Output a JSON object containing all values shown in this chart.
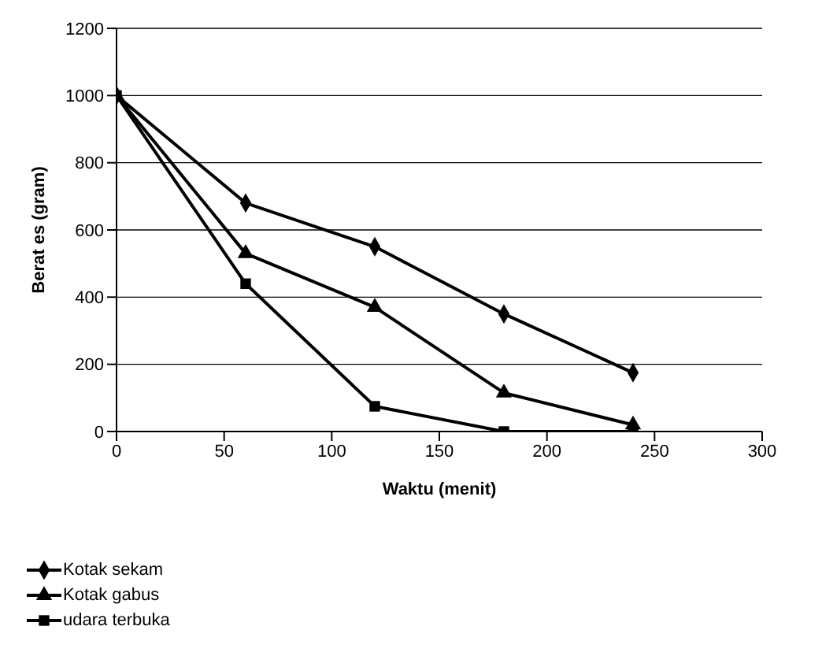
{
  "chart_data": {
    "type": "line",
    "xlabel": "Waktu (menit)",
    "ylabel": "Berat es (gram)",
    "x": [
      0,
      60,
      120,
      180,
      240
    ],
    "series": [
      {
        "name": "Kotak sekam",
        "color": "#000000",
        "marker": "diamond",
        "values": [
          1000,
          680,
          550,
          350,
          175
        ]
      },
      {
        "name": "Kotak gabus",
        "color": "#000000",
        "marker": "triangle",
        "values": [
          1000,
          530,
          370,
          115,
          20
        ]
      },
      {
        "name": "udara terbuka",
        "color": "#000000",
        "marker": "square",
        "values": [
          1000,
          440,
          75,
          0,
          0
        ]
      }
    ],
    "xlim": [
      0,
      300
    ],
    "xticks": [
      0,
      50,
      100,
      150,
      200,
      250,
      300
    ],
    "ylim": [
      0,
      1200
    ],
    "yticks": [
      0,
      200,
      400,
      600,
      800,
      1000,
      1200
    ],
    "grid": "y",
    "legend": "bottom left",
    "line_style": "solid"
  }
}
